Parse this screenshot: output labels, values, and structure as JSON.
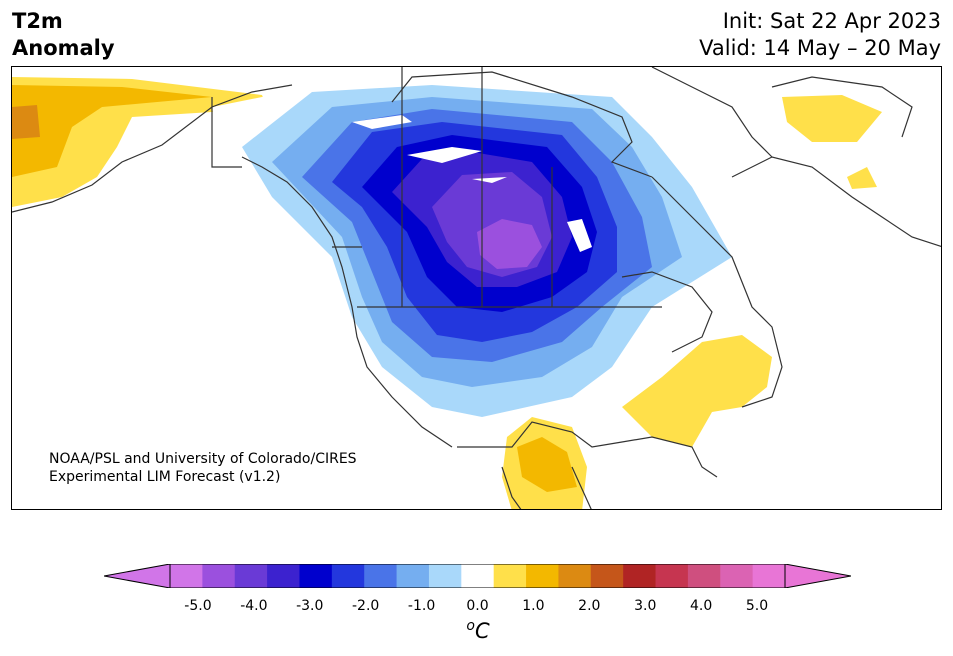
{
  "header": {
    "title_line1": "T2m",
    "title_line2": "Anomaly",
    "init": "Init: Sat 22 Apr 2023",
    "valid": "Valid: 14 May – 20 May"
  },
  "credit": {
    "line1": "NOAA/PSL and University of Colorado/CIRES",
    "line2": "Experimental LIM Forecast (v1.2)"
  },
  "colorbar": {
    "colors": [
      "#d175e8",
      "#9b50de",
      "#6a3ad6",
      "#3c22cf",
      "#0000cd",
      "#2337dd",
      "#4a74e8",
      "#75aef0",
      "#a9d8fa",
      "#ffffff",
      "#ffe04a",
      "#f3b800",
      "#dc8a12",
      "#c5561a",
      "#b02424",
      "#c63550",
      "#cf4f7f",
      "#db63b3",
      "#e875d6"
    ],
    "over_color": "#e875d6",
    "under_color": "#d175e8",
    "tick_labels": [
      "-5.0",
      "-4.0",
      "-3.0",
      "-2.0",
      "-1.0",
      "0.0",
      "1.0",
      "2.0",
      "3.0",
      "4.0",
      "5.0"
    ],
    "unit_sup": "o",
    "unit": "C"
  }
}
